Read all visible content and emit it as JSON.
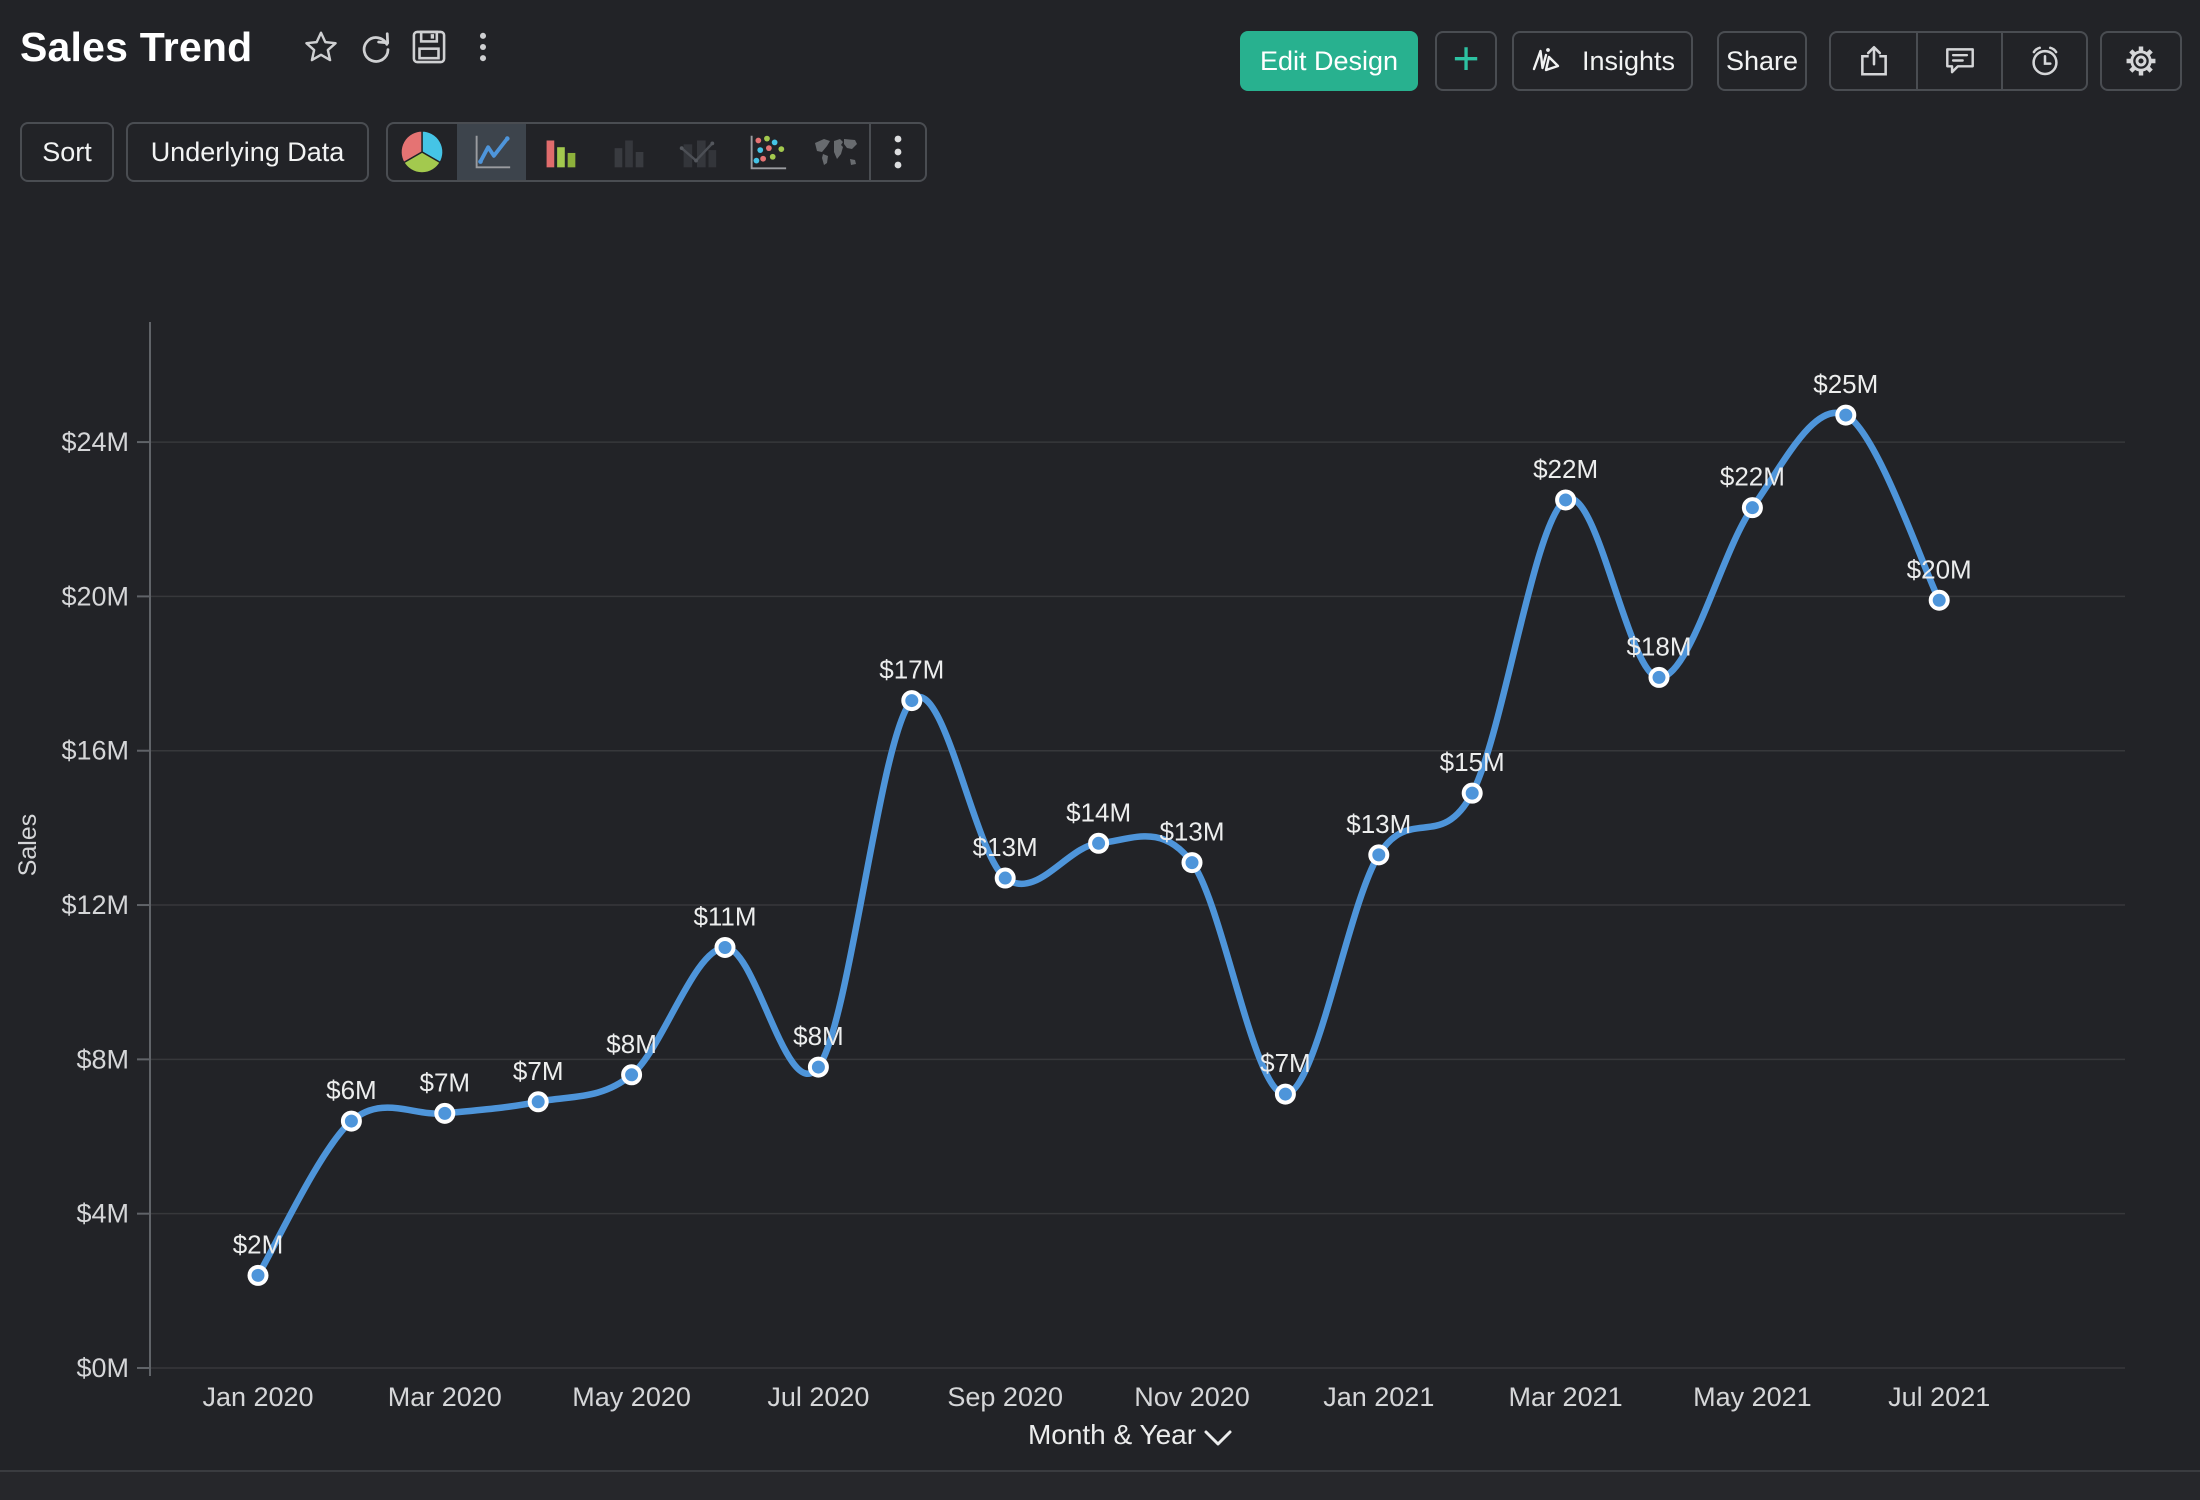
{
  "header": {
    "title": "Sales Trend",
    "left_icon_buttons": [
      "favorite",
      "refresh",
      "save",
      "more-options"
    ],
    "edit_design_label": "Edit Design",
    "add_label": "+",
    "insights_label": "Insights",
    "share_label": "Share",
    "right_icon_buttons": [
      "export",
      "comments",
      "alerts",
      "settings"
    ]
  },
  "toolbar": {
    "sort_label": "Sort",
    "underlying_data_label": "Underlying Data",
    "chart_types": [
      "pie",
      "line",
      "bar",
      "stacked-bar",
      "combo",
      "scatter",
      "map"
    ],
    "selected_chart_type": "line"
  },
  "colors": {
    "accent_green": "#28b18f",
    "accent_teal": "#2dc2a2",
    "line_blue": "#4e95da"
  },
  "chart_data": {
    "type": "line",
    "title": "Sales Trend",
    "xlabel": "Month & Year",
    "ylabel": "Sales",
    "x": [
      "Jan 2020",
      "Feb 2020",
      "Mar 2020",
      "Apr 2020",
      "May 2020",
      "Jun 2020",
      "Jul 2020",
      "Aug 2020",
      "Sep 2020",
      "Oct 2020",
      "Nov 2020",
      "Dec 2020",
      "Jan 2021",
      "Feb 2021",
      "Mar 2021",
      "Apr 2021",
      "May 2021",
      "Jun 2021",
      "Jul 2021"
    ],
    "values": [
      2.4,
      6.4,
      6.6,
      6.9,
      7.6,
      10.9,
      7.8,
      17.3,
      12.7,
      13.6,
      13.1,
      7.1,
      13.3,
      14.9,
      22.5,
      17.9,
      22.3,
      24.7,
      19.9
    ],
    "point_labels": [
      "$2M",
      "$6M",
      "$7M",
      "$7M",
      "$8M",
      "$11M",
      "$8M",
      "$17M",
      "$13M",
      "$14M",
      "$13M",
      "$7M",
      "$13M",
      "$15M",
      "$22M",
      "$18M",
      "$22M",
      "$25M",
      "$20M"
    ],
    "x_tick_labels": [
      "Jan 2020",
      "Mar 2020",
      "May 2020",
      "Jul 2020",
      "Sep 2020",
      "Nov 2020",
      "Jan 2021",
      "Mar 2021",
      "May 2021",
      "Jul 2021"
    ],
    "y_ticks": [
      0,
      4,
      8,
      12,
      16,
      20,
      24
    ],
    "y_tick_labels": [
      "$0M",
      "$4M",
      "$8M",
      "$12M",
      "$16M",
      "$20M",
      "$24M"
    ],
    "ylim": [
      0,
      27
    ],
    "grid": true,
    "legend": false,
    "marker": "circle",
    "smooth": true,
    "colors": {
      "line": "#4e95da",
      "marker_fill": "#4e95da",
      "marker_ring": "#ffffff",
      "grid": "#37383b",
      "axis": "#606368",
      "tick_text": "#d5d6d8",
      "point_label": "#eceded"
    }
  }
}
